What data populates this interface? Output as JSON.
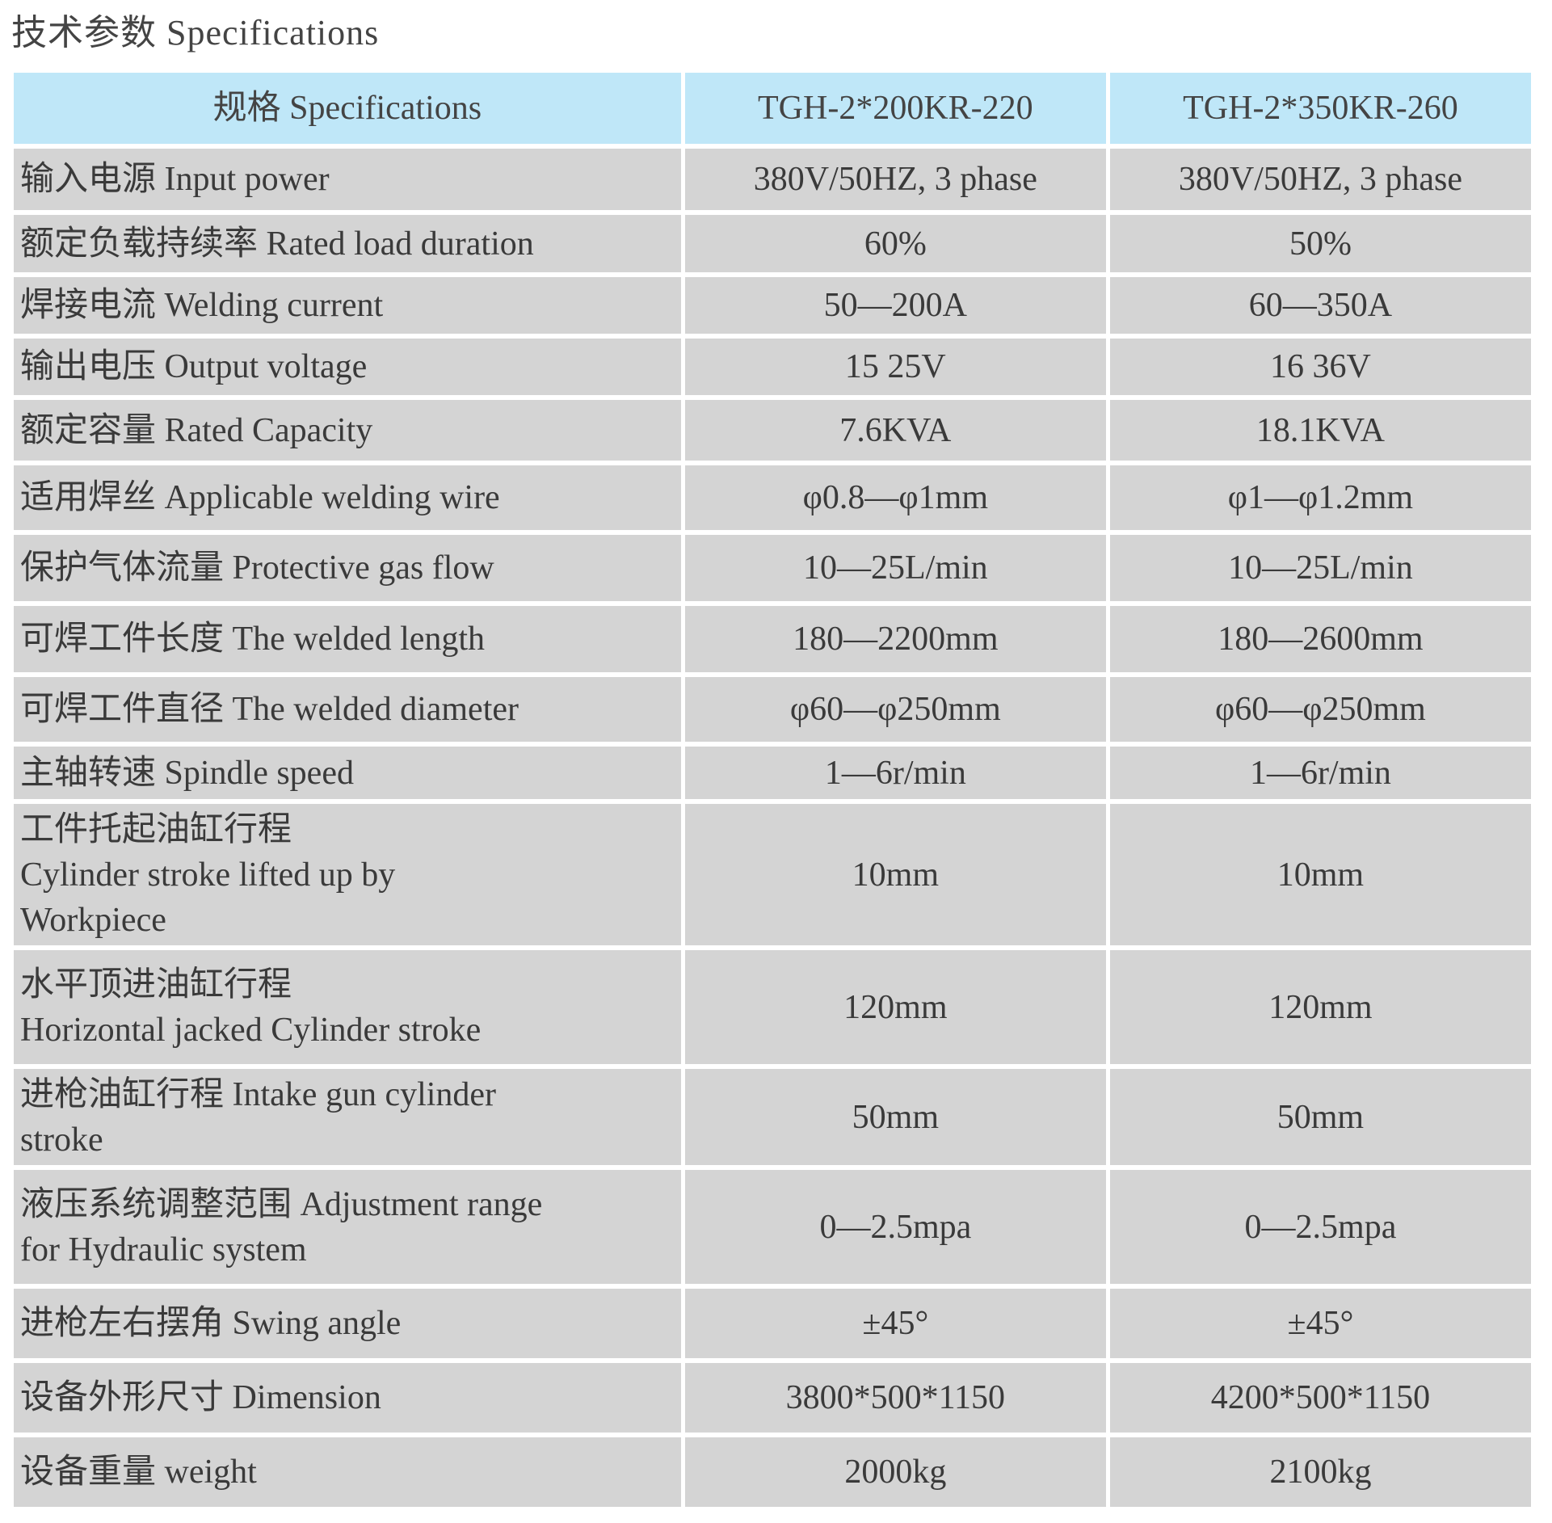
{
  "title": "技术参数 Specifications",
  "table": {
    "headers": [
      "规格 Specifications",
      "TGH-2*200KR-220",
      "TGH-2*350KR-260"
    ],
    "rows": [
      [
        "输入电源 Input power",
        "380V/50HZ, 3 phase",
        "380V/50HZ, 3 phase"
      ],
      [
        "额定负载持续率 Rated load duration",
        "60%",
        "50%"
      ],
      [
        "焊接电流 Welding current",
        "50—200A",
        "60—350A"
      ],
      [
        "输出电压 Output voltage",
        "15 25V",
        "16 36V"
      ],
      [
        "额定容量 Rated Capacity",
        "7.6KVA",
        "18.1KVA"
      ],
      [
        "适用焊丝 Applicable welding wire",
        "φ0.8—φ1mm",
        "φ1—φ1.2mm"
      ],
      [
        "保护气体流量 Protective gas flow",
        "10—25L/min",
        "10—25L/min"
      ],
      [
        "可焊工件长度 The welded length",
        "180—2200mm",
        "180—2600mm"
      ],
      [
        "可焊工件直径 The welded diameter",
        "φ60—φ250mm",
        "φ60—φ250mm"
      ],
      [
        "主轴转速 Spindle speed",
        "1—6r/min",
        "1—6r/min"
      ],
      [
        "工件托起油缸行程\nCylinder stroke lifted up by\nWorkpiece",
        "10mm",
        "10mm"
      ],
      [
        "水平顶进油缸行程\n Horizontal jacked Cylinder stroke",
        "120mm",
        "120mm"
      ],
      [
        "进枪油缸行程 Intake gun cylinder\nstroke",
        "50mm",
        "50mm"
      ],
      [
        "液压系统调整范围 Adjustment range\nfor Hydraulic system",
        "0—2.5mpa",
        "0—2.5mpa"
      ],
      [
        "进枪左右摆角 Swing angle",
        "±45°",
        "±45°"
      ],
      [
        "设备外形尺寸 Dimension",
        "3800*500*1150",
        "4200*500*1150"
      ],
      [
        "设备重量 weight",
        "2000kg",
        "2100kg"
      ]
    ]
  },
  "colors": {
    "header_bg": "#bfe7f8",
    "row_bg": "#d4d4d4"
  }
}
